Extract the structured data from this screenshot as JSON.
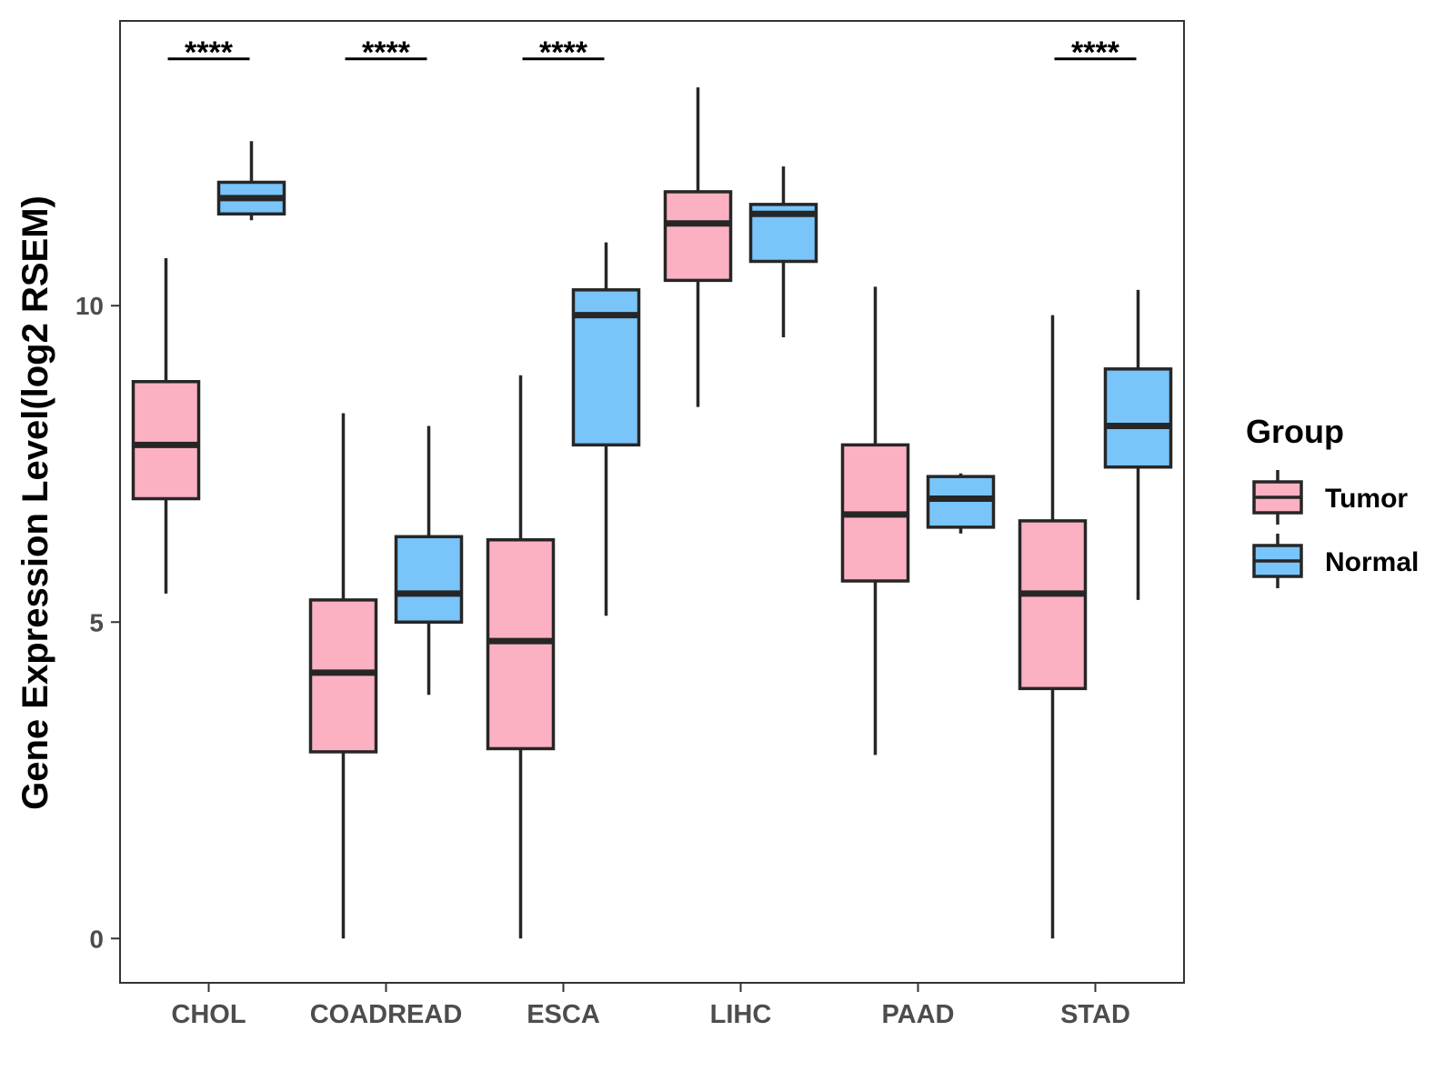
{
  "chart_data": {
    "type": "boxplot",
    "title": "",
    "xlabel": "",
    "ylabel": "Gene Expression Level(log2 RSEM)",
    "ylim": [
      -0.7,
      14.5
    ],
    "yticks": [
      0,
      5,
      10
    ],
    "ytick_labels": [
      "0",
      "5",
      "10"
    ],
    "grid": false,
    "categories": [
      "CHOL",
      "COADREAD",
      "ESCA",
      "LIHC",
      "PAAD",
      "STAD"
    ],
    "legend": {
      "title": "Group",
      "position": "right",
      "entries": [
        "Tumor",
        "Normal"
      ]
    },
    "series": [
      {
        "name": "Tumor",
        "color": "#FBB1C2",
        "boxes": [
          {
            "category": "CHOL",
            "whisker_low": 5.45,
            "q1": 6.95,
            "median": 7.8,
            "q3": 8.8,
            "whisker_high": 10.75
          },
          {
            "category": "COADREAD",
            "whisker_low": 0.0,
            "q1": 2.95,
            "median": 4.2,
            "q3": 5.35,
            "whisker_high": 8.3
          },
          {
            "category": "ESCA",
            "whisker_low": 0.0,
            "q1": 3.0,
            "median": 4.7,
            "q3": 6.3,
            "whisker_high": 8.9
          },
          {
            "category": "LIHC",
            "whisker_low": 8.4,
            "q1": 10.4,
            "median": 11.3,
            "q3": 11.8,
            "whisker_high": 13.45
          },
          {
            "category": "PAAD",
            "whisker_low": 2.9,
            "q1": 5.65,
            "median": 6.7,
            "q3": 7.8,
            "whisker_high": 10.3
          },
          {
            "category": "STAD",
            "whisker_low": 0.0,
            "q1": 3.95,
            "median": 5.45,
            "q3": 6.6,
            "whisker_high": 9.85
          }
        ]
      },
      {
        "name": "Normal",
        "color": "#79C4F9",
        "boxes": [
          {
            "category": "CHOL",
            "whisker_low": 11.35,
            "q1": 11.45,
            "median": 11.7,
            "q3": 11.95,
            "whisker_high": 12.6
          },
          {
            "category": "COADREAD",
            "whisker_low": 3.85,
            "q1": 5.0,
            "median": 5.45,
            "q3": 6.35,
            "whisker_high": 8.1
          },
          {
            "category": "ESCA",
            "whisker_low": 5.1,
            "q1": 7.8,
            "median": 9.85,
            "q3": 10.25,
            "whisker_high": 11.0
          },
          {
            "category": "LIHC",
            "whisker_low": 9.5,
            "q1": 10.7,
            "median": 11.45,
            "q3": 11.6,
            "whisker_high": 12.2
          },
          {
            "category": "PAAD",
            "whisker_low": 6.4,
            "q1": 6.5,
            "median": 6.95,
            "q3": 7.3,
            "whisker_high": 7.35
          },
          {
            "category": "STAD",
            "whisker_low": 5.35,
            "q1": 7.45,
            "median": 8.1,
            "q3": 9.0,
            "whisker_high": 10.25
          }
        ]
      }
    ],
    "significance": [
      {
        "category": "CHOL",
        "label": "****"
      },
      {
        "category": "COADREAD",
        "label": "****"
      },
      {
        "category": "ESCA",
        "label": "****"
      },
      {
        "category": "STAD",
        "label": "****"
      }
    ],
    "significance_level": 13.9
  }
}
